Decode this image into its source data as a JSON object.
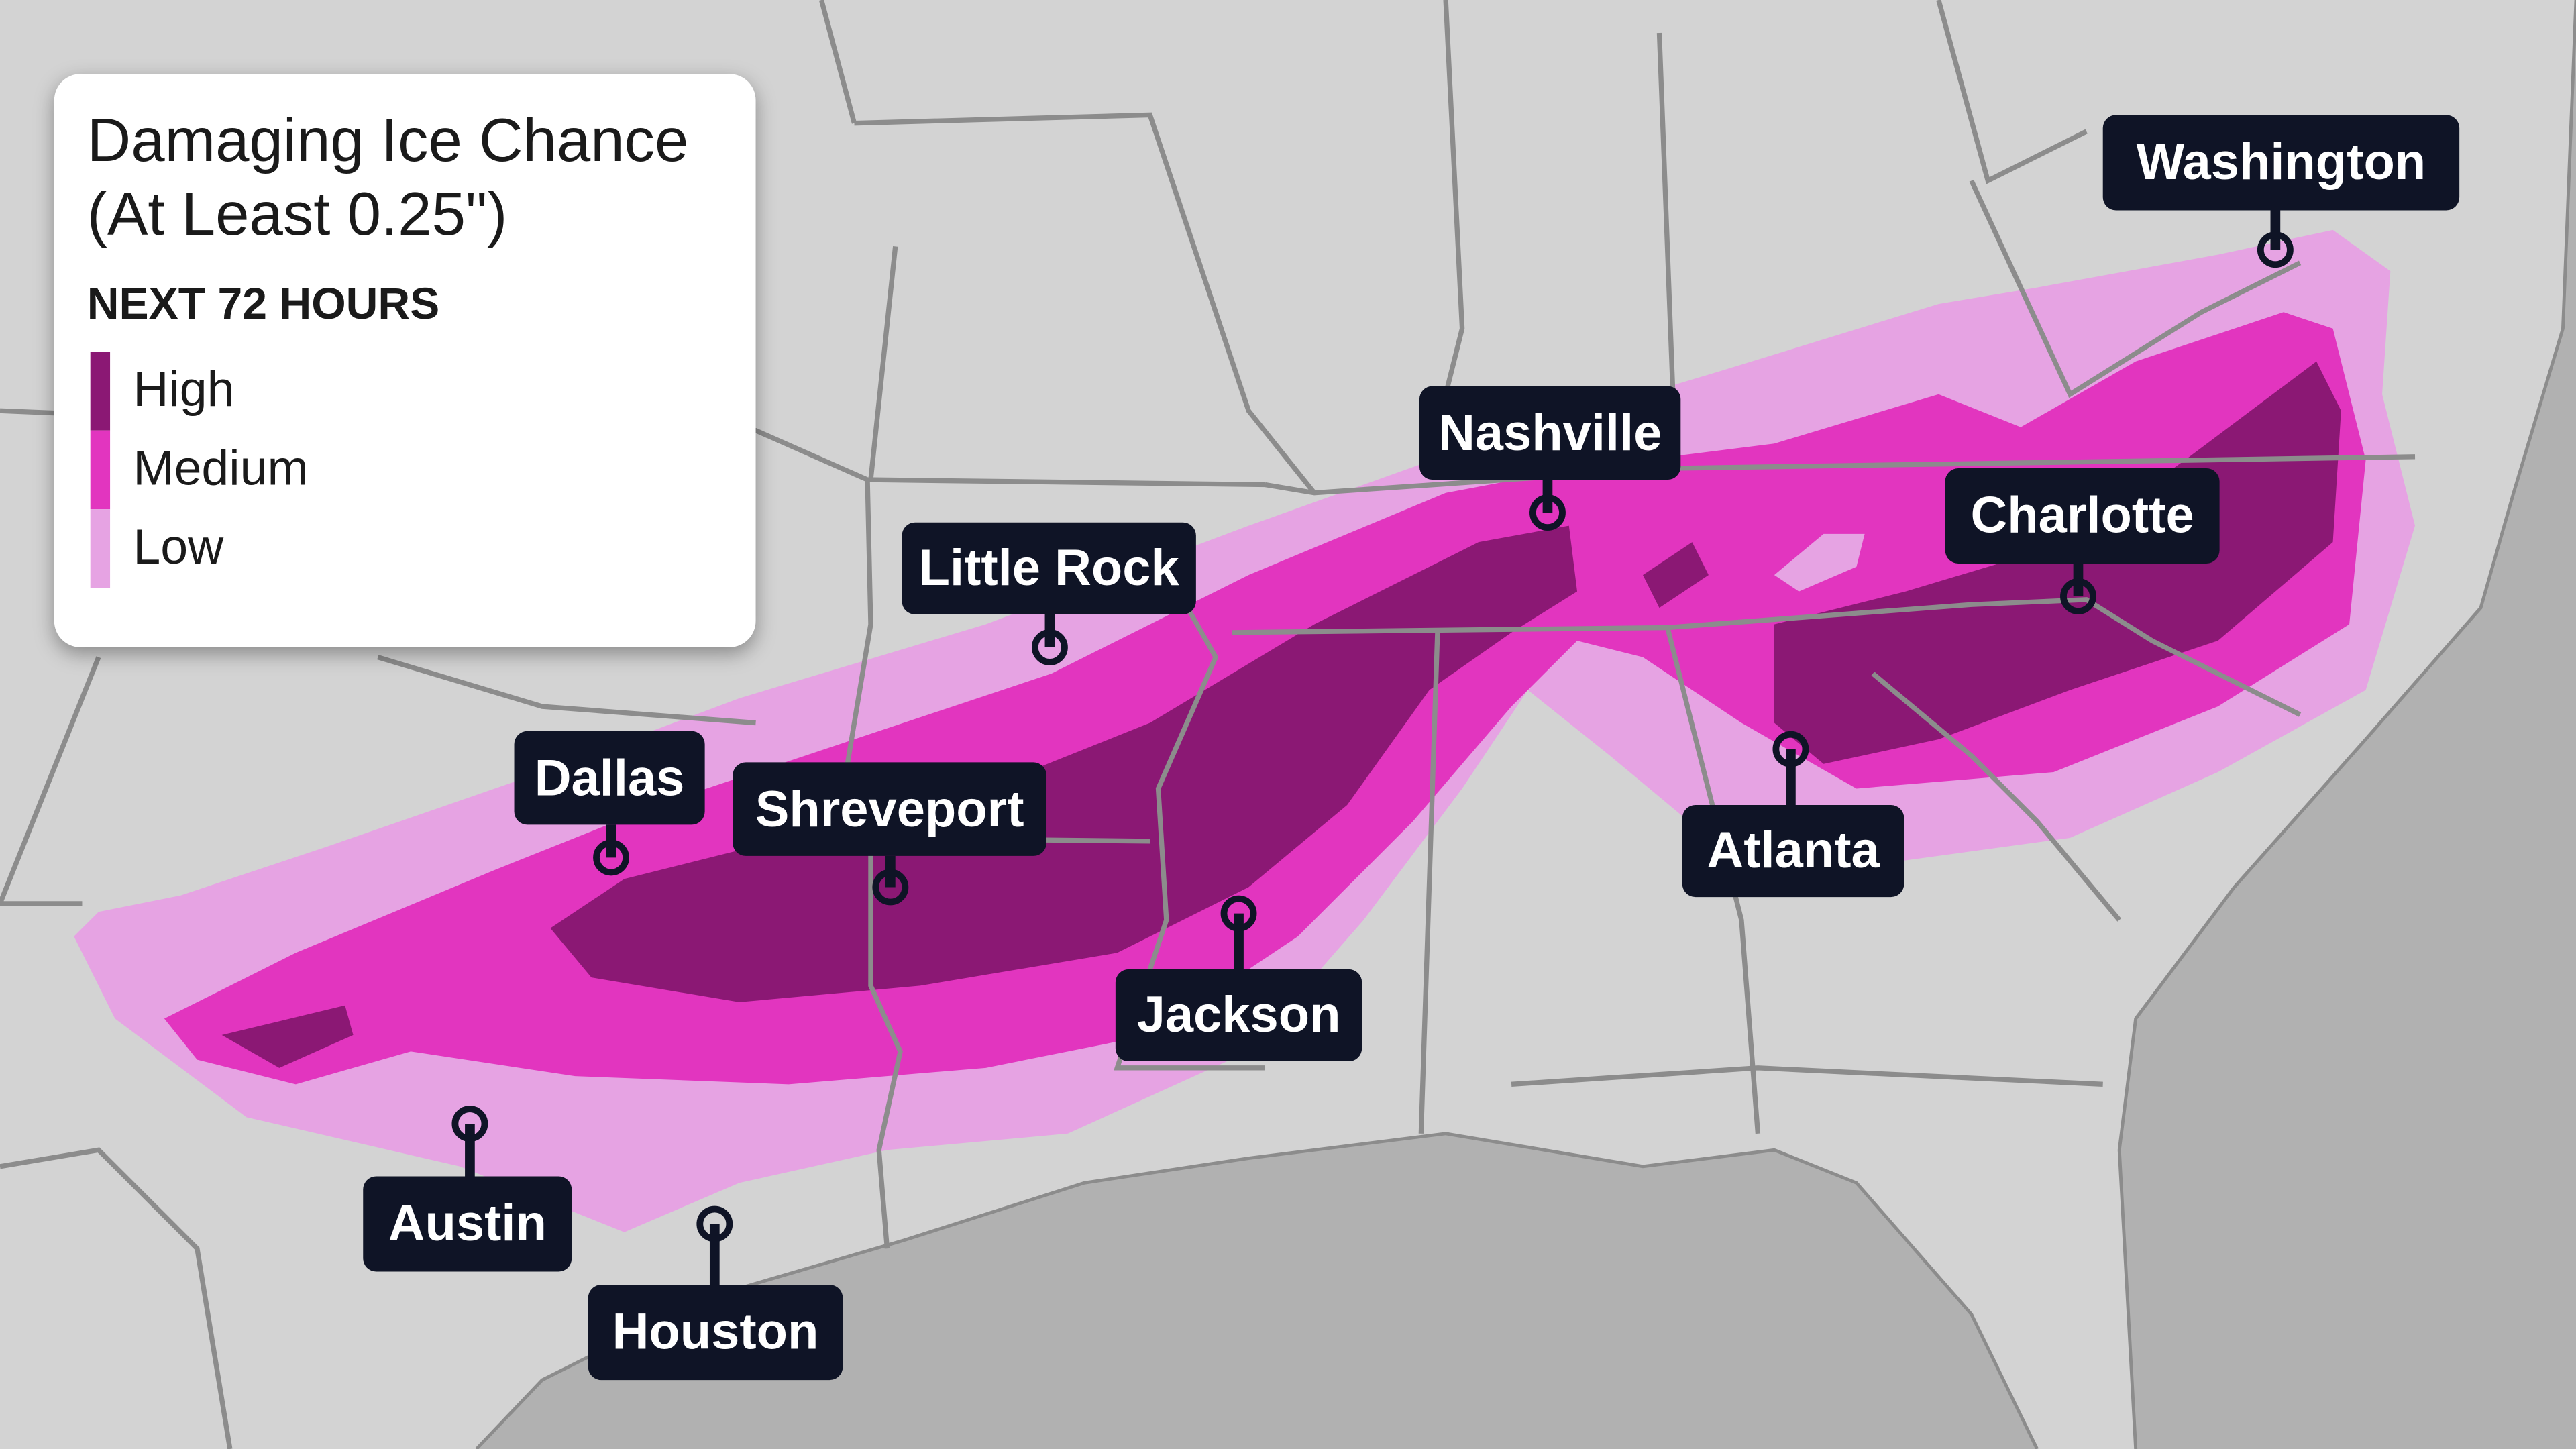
{
  "legend": {
    "title_line1": "Damaging Ice Chance",
    "title_line2": "(At Least 0.25\")",
    "subtitle": "NEXT 72 HOURS",
    "levels": [
      {
        "label": "High",
        "color": "#8b1874"
      },
      {
        "label": "Medium",
        "color": "#e235bf"
      },
      {
        "label": "Low",
        "color": "#e6a3e3"
      }
    ]
  },
  "colors": {
    "land": "#d3d3d3",
    "water": "#b1b1b1",
    "borders": "#8c8c8c",
    "label_bg": "#0f1426"
  },
  "cities": [
    "Washington",
    "Nashville",
    "Charlotte",
    "Little Rock",
    "Dallas",
    "Shreveport",
    "Atlanta",
    "Jackson",
    "Austin",
    "Houston"
  ]
}
